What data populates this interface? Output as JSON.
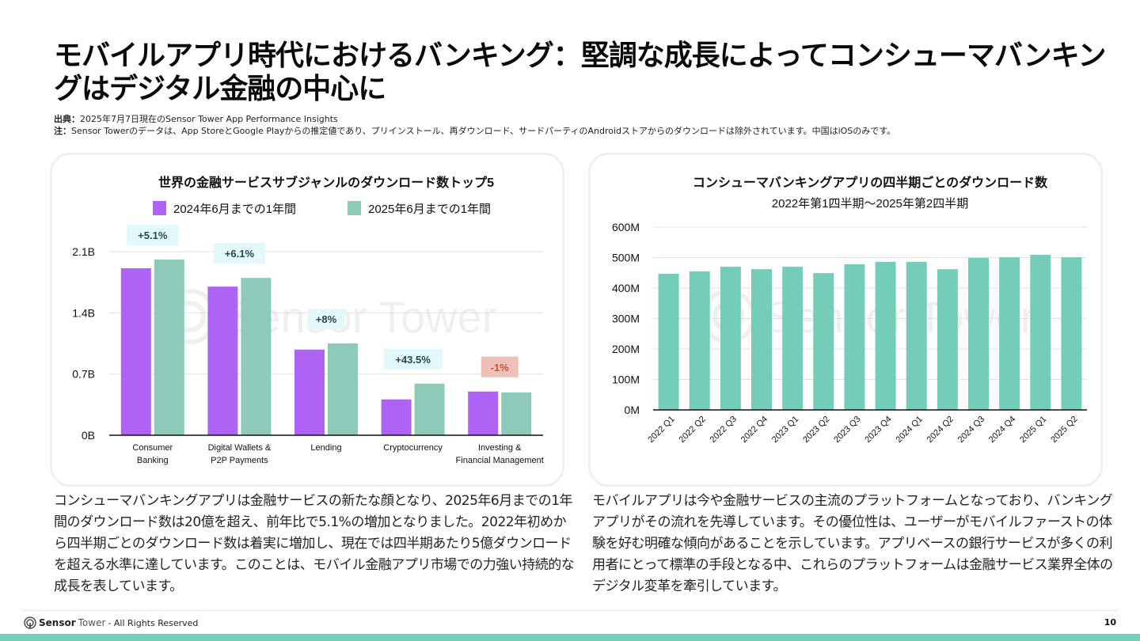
{
  "page": {
    "title": "モバイルアプリ時代におけるバンキング：堅調な成長によってコンシューマバンキングはデジタル金融の中心に",
    "source_label": "出典：",
    "source_text": "2025年7月7日現在のSensor Tower App Performance Insights",
    "note_label": "注：",
    "note_text": "Sensor Towerのデータは、App StoreとGoogle Playからの推定値であり、プリインストール、再ダウンロード、サードパーティのAndroidストアからのダウンロードは除外されています。中国はiOSのみです。",
    "paragraph_left": "コンシューマバンキングアプリは金融サービスの新たな顔となり、2025年6月までの1年間のダウンロード数は20億を超え、前年比で5.1%の増加となりました。2022年初めから四半期ごとのダウンロード数は着実に増加し、現在では四半期あたり5億ダウンロードを超える水準に達しています。このことは、モバイル金融アプリ市場での力強い持続的な成長を表しています。",
    "paragraph_right": "モバイルアプリは今や金融サービスの主流のプラットフォームとなっており、バンキングアプリがその流れを先導しています。その優位性は、ユーザーがモバイルファーストの体験を好む明確な傾向があることを示しています。アプリベースの銀行サービスが多くの利用者にとって標準の手段となる中、これらのプラットフォームは金融サービス業界全体のデジタル変革を牽引しています。",
    "footer_brand_bold": "Sensor",
    "footer_brand_light": "Tower",
    "footer_rights": " - All Rights Reserved",
    "page_number": "10",
    "watermark": "Sensor Tower",
    "colors": {
      "purple": "#af63f5",
      "teal": "#8ecab9",
      "teal_solid": "#74cdb8",
      "badge_pos_bg": "#e3f8fa",
      "badge_neg_bg": "#efc0b8",
      "badge_pos_text": "#24474c",
      "badge_neg_text": "#c0554a"
    }
  },
  "chart_data": [
    {
      "type": "bar",
      "title": "世界の金融サービスサブジャンルのダウンロード数トップ5",
      "categories": [
        [
          "Consumer",
          "Banking"
        ],
        [
          "Digital Wallets &",
          "P2P Payments"
        ],
        [
          "Lending"
        ],
        [
          "Cryptocurrency"
        ],
        [
          "Investing &",
          "Financial Management"
        ]
      ],
      "series": [
        {
          "name": "2024年6月までの1年間",
          "color": "#af63f5",
          "values": [
            1.91,
            1.7,
            0.98,
            0.41,
            0.5
          ]
        },
        {
          "name": "2025年6月までの1年間",
          "color": "#8ecab9",
          "values": [
            2.01,
            1.8,
            1.05,
            0.59,
            0.49
          ]
        }
      ],
      "annotations": [
        "+5.1%",
        "+6.1%",
        "+8%",
        "+43.5%",
        "-1%"
      ],
      "yticks": [
        0,
        0.7,
        1.4,
        2.1
      ],
      "ytick_labels": [
        "0B",
        "0.7B",
        "1.4B",
        "2.1B"
      ],
      "ylim": [
        0,
        2.1
      ],
      "xlabel": "",
      "ylabel": "",
      "unit": "B",
      "legend": "top-center",
      "grid": true
    },
    {
      "type": "bar",
      "title": "コンシューマバンキングアプリの四半期ごとのダウンロード数",
      "subtitle": "2022年第1四半期〜2025年第2四半期",
      "categories": [
        "2022 Q1",
        "2022 Q2",
        "2022 Q3",
        "2022 Q4",
        "2023 Q1",
        "2023 Q2",
        "2023 Q3",
        "2023 Q4",
        "2024 Q1",
        "2024 Q2",
        "2024 Q3",
        "2024 Q4",
        "2025 Q1",
        "2025 Q2"
      ],
      "values": [
        447,
        455,
        470,
        462,
        470,
        449,
        478,
        486,
        486,
        462,
        499,
        501,
        509,
        501
      ],
      "yticks": [
        0,
        100,
        200,
        300,
        400,
        500,
        600
      ],
      "ytick_labels": [
        "0M",
        "100M",
        "200M",
        "300M",
        "400M",
        "500M",
        "600M"
      ],
      "ylim": [
        0,
        600
      ],
      "xlabel": "",
      "ylabel": "",
      "unit": "M",
      "color": "#74cdb8",
      "grid": true
    }
  ]
}
